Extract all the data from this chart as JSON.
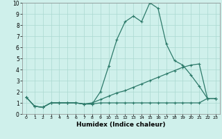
{
  "title": "",
  "xlabel": "Humidex (Indice chaleur)",
  "line_color": "#2d7a6a",
  "bg_color": "#cff0eb",
  "grid_color": "#aad8d0",
  "xlim": [
    -0.5,
    23.5
  ],
  "ylim": [
    0,
    10
  ],
  "xticks": [
    0,
    1,
    2,
    3,
    4,
    5,
    6,
    7,
    8,
    9,
    10,
    11,
    12,
    13,
    14,
    15,
    16,
    17,
    18,
    19,
    20,
    21,
    22,
    23
  ],
  "yticks": [
    0,
    1,
    2,
    3,
    4,
    5,
    6,
    7,
    8,
    9,
    10
  ],
  "line1_x": [
    0,
    1,
    2,
    3,
    4,
    5,
    6,
    7,
    8,
    9,
    10,
    11,
    12,
    13,
    14,
    15,
    16,
    17,
    18,
    19,
    20,
    21,
    22,
    23
  ],
  "line1_y": [
    1.5,
    0.7,
    0.6,
    1.0,
    1.0,
    1.0,
    1.0,
    0.9,
    0.9,
    2.0,
    4.3,
    6.7,
    8.3,
    8.8,
    8.3,
    10.0,
    9.5,
    6.3,
    4.8,
    4.4,
    3.5,
    2.5,
    1.4,
    1.4
  ],
  "line2_x": [
    0,
    1,
    2,
    3,
    4,
    5,
    6,
    7,
    8,
    9,
    10,
    11,
    12,
    13,
    14,
    15,
    16,
    17,
    18,
    19,
    20,
    21,
    22,
    23
  ],
  "line2_y": [
    1.5,
    0.7,
    0.6,
    1.0,
    1.0,
    1.0,
    1.0,
    0.9,
    1.0,
    1.3,
    1.6,
    1.9,
    2.1,
    2.4,
    2.7,
    3.0,
    3.3,
    3.6,
    3.9,
    4.2,
    4.4,
    4.5,
    1.4,
    1.4
  ],
  "line3_x": [
    0,
    1,
    2,
    3,
    4,
    5,
    6,
    7,
    8,
    9,
    10,
    11,
    12,
    13,
    14,
    15,
    16,
    17,
    18,
    19,
    20,
    21,
    22,
    23
  ],
  "line3_y": [
    1.5,
    0.7,
    0.6,
    1.0,
    1.0,
    1.0,
    1.0,
    0.9,
    0.9,
    1.0,
    1.0,
    1.0,
    1.0,
    1.0,
    1.0,
    1.0,
    1.0,
    1.0,
    1.0,
    1.0,
    1.0,
    1.0,
    1.4,
    1.4
  ]
}
